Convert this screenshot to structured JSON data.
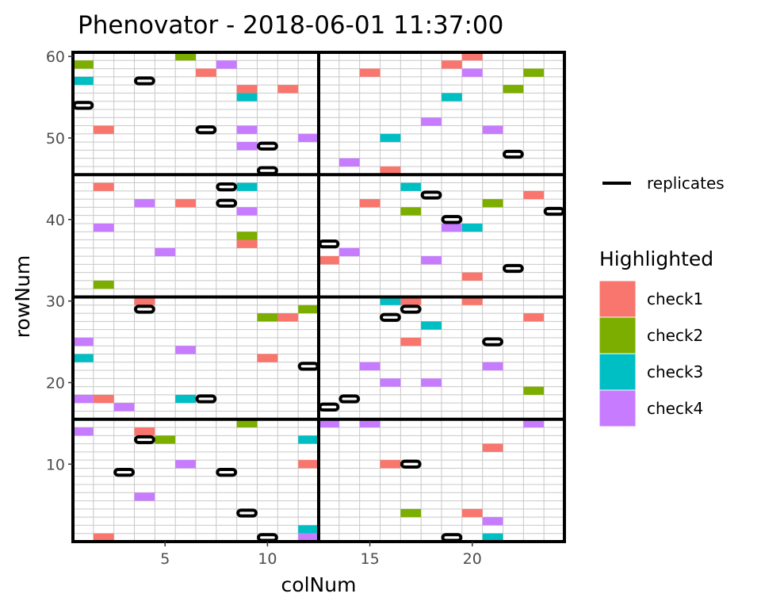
{
  "chart_data": {
    "type": "heatmap",
    "title": "Phenovator - 2018-06-01 11:37:00",
    "xlabel": "colNum",
    "ylabel": "rowNum",
    "xlim": [
      0.5,
      24.5
    ],
    "ylim": [
      0.5,
      60.5
    ],
    "x_ticks": [
      5,
      10,
      15,
      20
    ],
    "y_ticks": [
      10,
      20,
      30,
      40,
      50,
      60
    ],
    "grid": true,
    "legend_position": "right",
    "replicates_legend_label": "replicates",
    "highlight_legend_title": "Highlighted",
    "series": [
      {
        "name": "check1",
        "color": "#F8766D",
        "cells": [
          [
            7,
            58
          ],
          [
            15,
            58
          ],
          [
            19,
            59
          ],
          [
            20,
            60
          ],
          [
            9,
            56
          ],
          [
            11,
            56
          ],
          [
            2,
            51
          ],
          [
            16,
            46
          ],
          [
            2,
            44
          ],
          [
            6,
            42
          ],
          [
            15,
            42
          ],
          [
            23,
            43
          ],
          [
            9,
            37
          ],
          [
            13,
            35
          ],
          [
            20,
            33
          ],
          [
            4,
            30
          ],
          [
            17,
            30
          ],
          [
            20,
            30
          ],
          [
            11,
            28
          ],
          [
            23,
            28
          ],
          [
            17,
            25
          ],
          [
            10,
            23
          ],
          [
            2,
            18
          ],
          [
            4,
            14
          ],
          [
            21,
            12
          ],
          [
            12,
            10
          ],
          [
            16,
            10
          ],
          [
            20,
            4
          ],
          [
            2,
            1
          ]
        ]
      },
      {
        "name": "check2",
        "color": "#7CAE00",
        "cells": [
          [
            1,
            59
          ],
          [
            6,
            60
          ],
          [
            23,
            58
          ],
          [
            22,
            56
          ],
          [
            9,
            38
          ],
          [
            17,
            41
          ],
          [
            21,
            42
          ],
          [
            2,
            32
          ],
          [
            10,
            28
          ],
          [
            12,
            29
          ],
          [
            23,
            19
          ],
          [
            9,
            15
          ],
          [
            5,
            13
          ],
          [
            17,
            4
          ]
        ]
      },
      {
        "name": "check3",
        "color": "#00BFC4",
        "cells": [
          [
            1,
            57
          ],
          [
            9,
            55
          ],
          [
            19,
            55
          ],
          [
            16,
            50
          ],
          [
            9,
            44
          ],
          [
            17,
            44
          ],
          [
            20,
            39
          ],
          [
            16,
            30
          ],
          [
            18,
            27
          ],
          [
            1,
            23
          ],
          [
            6,
            18
          ],
          [
            12,
            13
          ],
          [
            12,
            2
          ],
          [
            21,
            1
          ]
        ]
      },
      {
        "name": "check4",
        "color": "#C77CFF",
        "cells": [
          [
            8,
            59
          ],
          [
            20,
            58
          ],
          [
            9,
            51
          ],
          [
            18,
            52
          ],
          [
            21,
            51
          ],
          [
            9,
            49
          ],
          [
            12,
            50
          ],
          [
            14,
            47
          ],
          [
            4,
            42
          ],
          [
            9,
            41
          ],
          [
            2,
            39
          ],
          [
            19,
            39
          ],
          [
            5,
            36
          ],
          [
            14,
            36
          ],
          [
            18,
            35
          ],
          [
            1,
            25
          ],
          [
            6,
            24
          ],
          [
            15,
            22
          ],
          [
            21,
            22
          ],
          [
            16,
            20
          ],
          [
            18,
            20
          ],
          [
            1,
            18
          ],
          [
            3,
            17
          ],
          [
            13,
            15
          ],
          [
            15,
            15
          ],
          [
            23,
            15
          ],
          [
            1,
            14
          ],
          [
            6,
            10
          ],
          [
            4,
            6
          ],
          [
            21,
            3
          ],
          [
            12,
            1
          ]
        ]
      },
      {
        "name": "replicates",
        "color": "#000000",
        "cells": [
          [
            4,
            57
          ],
          [
            1,
            54
          ],
          [
            7,
            51
          ],
          [
            10,
            49
          ],
          [
            22,
            48
          ],
          [
            10,
            46
          ],
          [
            8,
            44
          ],
          [
            8,
            42
          ],
          [
            18,
            43
          ],
          [
            19,
            40
          ],
          [
            24,
            41
          ],
          [
            13,
            37
          ],
          [
            22,
            34
          ],
          [
            4,
            29
          ],
          [
            16,
            28
          ],
          [
            17,
            29
          ],
          [
            21,
            25
          ],
          [
            12,
            22
          ],
          [
            7,
            18
          ],
          [
            13,
            17
          ],
          [
            14,
            18
          ],
          [
            4,
            13
          ],
          [
            17,
            10
          ],
          [
            3,
            9
          ],
          [
            8,
            9
          ],
          [
            9,
            4
          ],
          [
            10,
            1
          ],
          [
            19,
            1
          ]
        ]
      }
    ]
  }
}
